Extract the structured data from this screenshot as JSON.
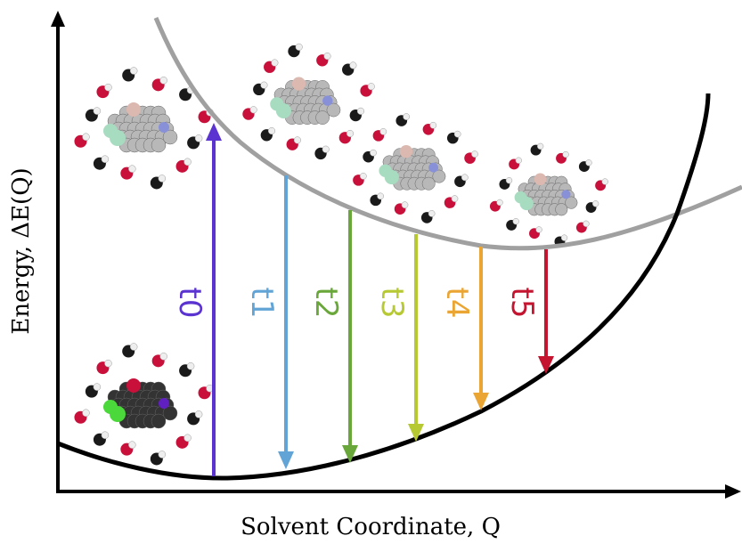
{
  "axes": {
    "x_label": "Solvent Coordinate, Q",
    "y_label": "Energy, ΔE(Q)"
  },
  "arrows": [
    {
      "label": "t0",
      "color": "#5a33d1"
    },
    {
      "label": "t1",
      "color": "#62a4d6"
    },
    {
      "label": "t2",
      "color": "#6aa73a"
    },
    {
      "label": "t3",
      "color": "#b7c932"
    },
    {
      "label": "t4",
      "color": "#eaa532"
    },
    {
      "label": "t5",
      "color": "#c41430"
    }
  ]
}
